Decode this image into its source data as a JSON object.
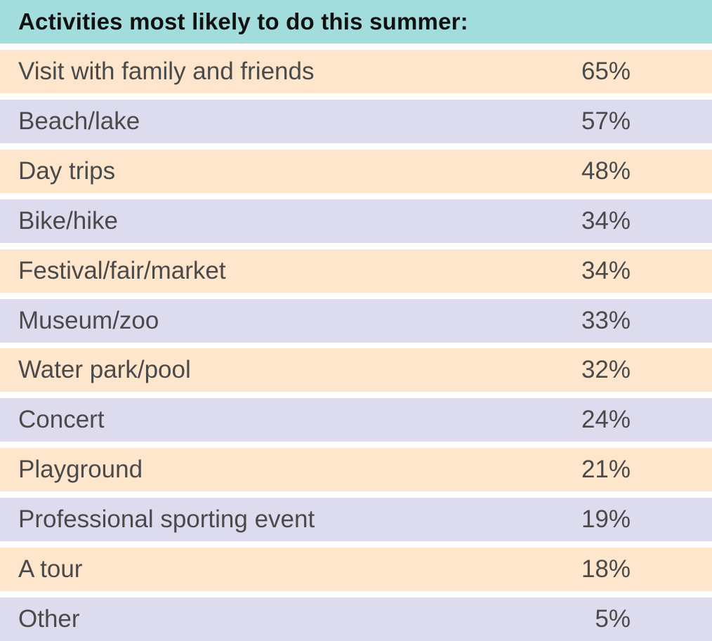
{
  "colors": {
    "header_bg": "#a2dcdc",
    "row_odd_bg": "#fde6cc",
    "row_even_bg": "#dcdcee",
    "text": "#4a4a4a"
  },
  "chart_data": {
    "type": "table",
    "title": "Activities most likely to do this summer:",
    "categories": [
      "Visit with family and friends",
      "Beach/lake",
      "Day trips",
      "Bike/hike",
      "Festival/fair/market",
      "Museum/zoo",
      "Water park/pool",
      "Concert",
      "Playground",
      "Professional sporting event",
      "A tour",
      "Other"
    ],
    "values": [
      65,
      57,
      48,
      34,
      34,
      33,
      32,
      24,
      21,
      19,
      18,
      5
    ],
    "value_labels": [
      "65%",
      "57%",
      "48%",
      "34%",
      "34%",
      "33%",
      "32%",
      "24%",
      "21%",
      "19%",
      "18%",
      "5%"
    ]
  }
}
